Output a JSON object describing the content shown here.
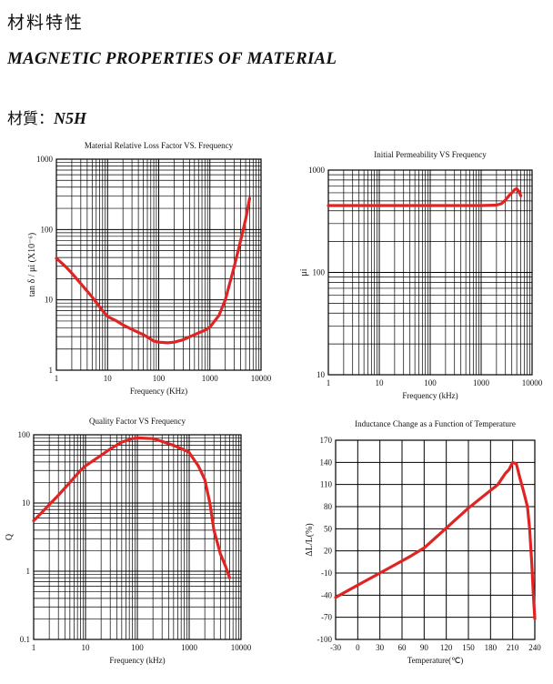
{
  "header": {
    "title_cn": "材料特性",
    "title_en": "MAGNETIC PROPERTIES OF MATERIAL",
    "material_label": "材質：",
    "material_code": "N5H"
  },
  "colors": {
    "curve": "#e02424",
    "grid": "#000000"
  },
  "chart_data": [
    {
      "type": "line",
      "title": "Material Relative Loss Factor VS. Frequency",
      "xlabel": "Frequency (KHz)",
      "ylabel": "tan δ / μi (X10⁻⁶)",
      "xscale": "log",
      "yscale": "log",
      "xlim": [
        1,
        10000
      ],
      "ylim": [
        1,
        1000
      ],
      "xticks": [
        "1",
        "10",
        "100",
        "1000",
        "10000"
      ],
      "yticks": [
        "1000",
        "100",
        "10",
        "1"
      ],
      "series": [
        {
          "x": [
            1,
            1.5,
            2,
            3,
            5,
            8,
            10,
            15,
            20,
            30,
            50,
            80,
            100,
            150,
            200,
            300,
            500,
            800,
            1000,
            1500,
            2000,
            3000,
            4000,
            5000,
            6000
          ],
          "y": [
            39,
            30,
            24,
            17,
            11,
            7,
            5.8,
            5,
            4.4,
            3.8,
            3.2,
            2.6,
            2.5,
            2.45,
            2.5,
            2.7,
            3.2,
            3.7,
            4.1,
            6,
            10,
            30,
            70,
            140,
            280
          ]
        }
      ]
    },
    {
      "type": "line",
      "title": "Initial Permeability VS Frequency",
      "xlabel": "Frequency (kHz)",
      "ylabel": "μi",
      "xscale": "log",
      "yscale": "log",
      "xlim": [
        1,
        10000
      ],
      "ylim": [
        10,
        1000
      ],
      "xticks": [
        "1",
        "10",
        "100",
        "1000",
        "10000"
      ],
      "yticks": [
        "1000",
        "100",
        "10"
      ],
      "series": [
        {
          "x": [
            1,
            10,
            100,
            1000,
            2000,
            2500,
            3000,
            3500,
            4000,
            4500,
            5000,
            5500,
            6000
          ],
          "y": [
            450,
            450,
            450,
            450,
            455,
            470,
            510,
            560,
            600,
            640,
            660,
            620,
            560
          ]
        }
      ]
    },
    {
      "type": "line",
      "title": "Quality Factor VS Frequency",
      "xlabel": "Frequency (kHz)",
      "ylabel": "Q",
      "xscale": "log",
      "yscale": "log",
      "xlim": [
        1,
        10000
      ],
      "ylim": [
        0.1,
        100
      ],
      "xticks": [
        "1",
        "10",
        "100",
        "1000",
        "10000"
      ],
      "yticks": [
        "100",
        "10",
        "1",
        "0.1"
      ],
      "series": [
        {
          "x": [
            1,
            1.5,
            2,
            3,
            5,
            8,
            10,
            20,
            30,
            50,
            80,
            100,
            200,
            300,
            500,
            800,
            1000,
            1500,
            2000,
            2500,
            3000,
            4000,
            5000,
            6000
          ],
          "y": [
            5.5,
            7.5,
            9.5,
            13,
            20,
            30,
            35,
            50,
            62,
            78,
            88,
            90,
            88,
            80,
            70,
            60,
            55,
            35,
            22,
            10,
            4,
            1.8,
            1.2,
            0.8
          ]
        }
      ]
    },
    {
      "type": "line",
      "title": "Inductance Change as a Function of Temperature",
      "xlabel": "Temperature(℃)",
      "ylabel": "ΔL/L(%)",
      "xlim": [
        -30,
        240
      ],
      "ylim": [
        -100,
        170
      ],
      "xticks": [
        "-30",
        "0",
        "30",
        "60",
        "90",
        "120",
        "150",
        "180",
        "210",
        "240"
      ],
      "yticks": [
        "170",
        "140",
        "110",
        "80",
        "50",
        "20",
        "-10",
        "-40",
        "-70",
        "-100"
      ],
      "series": [
        {
          "x": [
            -30,
            -10,
            10,
            30,
            50,
            70,
            90,
            110,
            130,
            150,
            170,
            190,
            200,
            205,
            210,
            215,
            220,
            225,
            230,
            233,
            236,
            238,
            240
          ],
          "y": [
            -43,
            -32,
            -21,
            -10,
            1,
            12,
            24,
            42,
            60,
            78,
            94,
            110,
            125,
            130,
            140,
            138,
            118,
            100,
            80,
            50,
            0,
            -40,
            -72
          ]
        }
      ]
    }
  ]
}
